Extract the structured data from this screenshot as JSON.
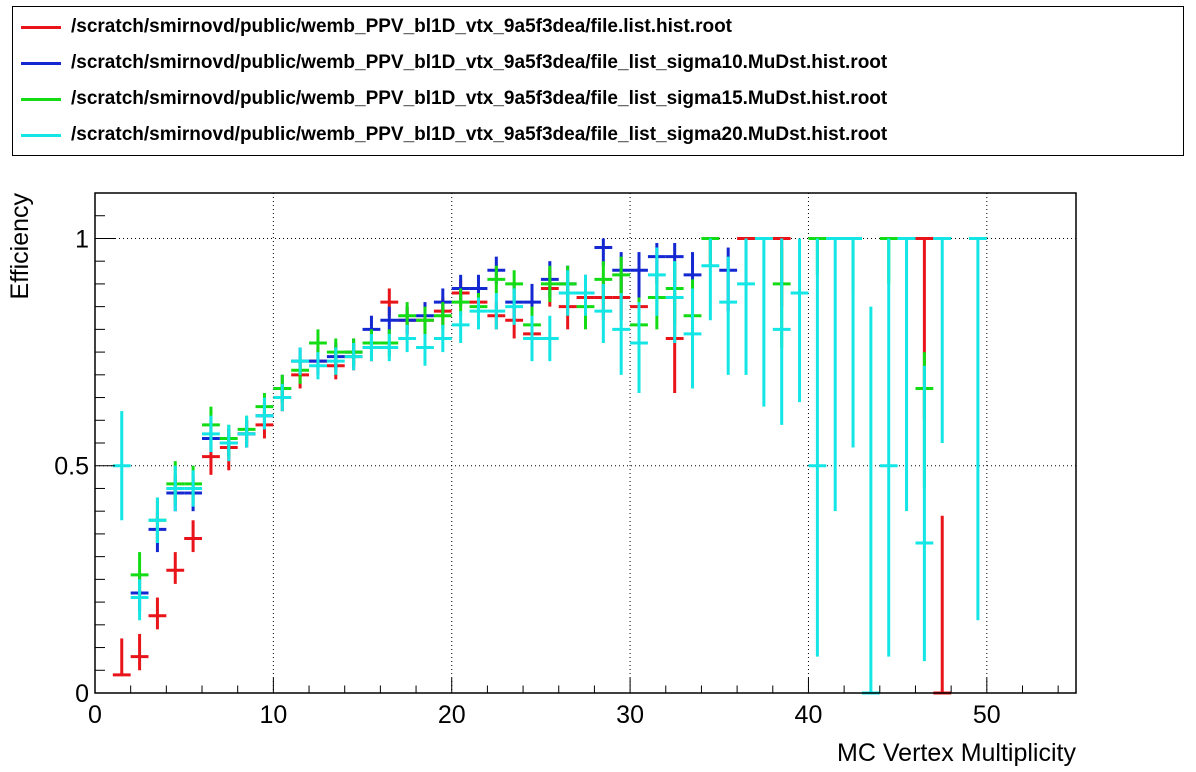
{
  "chart_data": {
    "type": "scatter",
    "xlabel": "MC Vertex Multiplicity",
    "ylabel": "Efficiency",
    "xlim": [
      0,
      55
    ],
    "ylim": [
      0,
      1.1
    ],
    "x_ticks": [
      "0",
      "10",
      "20",
      "30",
      "40",
      "50"
    ],
    "y_ticks": [
      "0",
      "0.5",
      "1"
    ],
    "grid": true,
    "legend_position": "top",
    "series": [
      {
        "name": "/scratch/smirnovd/public/wemb_PPV_bl1D_vtx_9a5f3dea/file.list.hist.root",
        "color": "#e8141a",
        "points": [
          {
            "x": 1.5,
            "y": 0.04,
            "lo": 0.04,
            "hi": 0.12
          },
          {
            "x": 2.5,
            "y": 0.08,
            "lo": 0.05,
            "hi": 0.13
          },
          {
            "x": 3.5,
            "y": 0.17,
            "lo": 0.14,
            "hi": 0.21
          },
          {
            "x": 4.5,
            "y": 0.27,
            "lo": 0.24,
            "hi": 0.31
          },
          {
            "x": 5.5,
            "y": 0.34,
            "lo": 0.31,
            "hi": 0.38
          },
          {
            "x": 6.5,
            "y": 0.52,
            "lo": 0.48,
            "hi": 0.55
          },
          {
            "x": 7.5,
            "y": 0.54,
            "lo": 0.49,
            "hi": 0.57
          },
          {
            "x": 8.5,
            "y": 0.57,
            "lo": 0.54,
            "hi": 0.6
          },
          {
            "x": 9.5,
            "y": 0.59,
            "lo": 0.56,
            "hi": 0.62
          },
          {
            "x": 10.5,
            "y": 0.65,
            "lo": 0.62,
            "hi": 0.68
          },
          {
            "x": 11.5,
            "y": 0.7,
            "lo": 0.67,
            "hi": 0.73
          },
          {
            "x": 12.5,
            "y": 0.73,
            "lo": 0.7,
            "hi": 0.76
          },
          {
            "x": 13.5,
            "y": 0.72,
            "lo": 0.69,
            "hi": 0.75
          },
          {
            "x": 14.5,
            "y": 0.74,
            "lo": 0.71,
            "hi": 0.77
          },
          {
            "x": 15.5,
            "y": 0.76,
            "lo": 0.73,
            "hi": 0.79
          },
          {
            "x": 16.5,
            "y": 0.86,
            "lo": 0.83,
            "hi": 0.89
          },
          {
            "x": 17.5,
            "y": 0.82,
            "lo": 0.79,
            "hi": 0.85
          },
          {
            "x": 18.5,
            "y": 0.82,
            "lo": 0.79,
            "hi": 0.85
          },
          {
            "x": 19.5,
            "y": 0.84,
            "lo": 0.81,
            "hi": 0.87
          },
          {
            "x": 20.5,
            "y": 0.88,
            "lo": 0.85,
            "hi": 0.91
          },
          {
            "x": 21.5,
            "y": 0.86,
            "lo": 0.83,
            "hi": 0.89
          },
          {
            "x": 22.5,
            "y": 0.83,
            "lo": 0.8,
            "hi": 0.86
          },
          {
            "x": 23.5,
            "y": 0.82,
            "lo": 0.78,
            "hi": 0.85
          },
          {
            "x": 24.5,
            "y": 0.79,
            "lo": 0.75,
            "hi": 0.83
          },
          {
            "x": 25.5,
            "y": 0.89,
            "lo": 0.85,
            "hi": 0.93
          },
          {
            "x": 26.5,
            "y": 0.85,
            "lo": 0.8,
            "hi": 0.89
          },
          {
            "x": 27.5,
            "y": 0.87,
            "lo": 0.82,
            "hi": 0.91
          },
          {
            "x": 28.5,
            "y": 0.87,
            "lo": 0.82,
            "hi": 0.91
          },
          {
            "x": 29.5,
            "y": 0.87,
            "lo": 0.82,
            "hi": 0.92
          },
          {
            "x": 30.5,
            "y": 0.85,
            "lo": 0.79,
            "hi": 0.9
          },
          {
            "x": 32.5,
            "y": 0.78,
            "lo": 0.66,
            "hi": 0.88
          },
          {
            "x": 34.5,
            "y": 1.0,
            "lo": 0.95,
            "hi": 1.0
          },
          {
            "x": 36.5,
            "y": 1.0,
            "lo": 0.9,
            "hi": 1.0
          },
          {
            "x": 38.5,
            "y": 1.0,
            "lo": 0.85,
            "hi": 1.0
          },
          {
            "x": 46.5,
            "y": 1.0,
            "lo": 0.6,
            "hi": 1.0
          },
          {
            "x": 47.5,
            "y": 0.0,
            "lo": 0.0,
            "hi": 0.39
          }
        ]
      },
      {
        "name": "/scratch/smirnovd/public/wemb_PPV_bl1D_vtx_9a5f3dea/file_list_sigma10.MuDst.hist.root",
        "color": "#1428d2",
        "points": [
          {
            "x": 2.5,
            "y": 0.22,
            "lo": 0.18,
            "hi": 0.26
          },
          {
            "x": 3.5,
            "y": 0.36,
            "lo": 0.31,
            "hi": 0.4
          },
          {
            "x": 4.5,
            "y": 0.44,
            "lo": 0.4,
            "hi": 0.48
          },
          {
            "x": 5.5,
            "y": 0.44,
            "lo": 0.4,
            "hi": 0.48
          },
          {
            "x": 6.5,
            "y": 0.56,
            "lo": 0.53,
            "hi": 0.6
          },
          {
            "x": 7.5,
            "y": 0.55,
            "lo": 0.52,
            "hi": 0.58
          },
          {
            "x": 8.5,
            "y": 0.57,
            "lo": 0.54,
            "hi": 0.6
          },
          {
            "x": 9.5,
            "y": 0.61,
            "lo": 0.58,
            "hi": 0.64
          },
          {
            "x": 10.5,
            "y": 0.67,
            "lo": 0.64,
            "hi": 0.7
          },
          {
            "x": 11.5,
            "y": 0.73,
            "lo": 0.7,
            "hi": 0.76
          },
          {
            "x": 12.5,
            "y": 0.73,
            "lo": 0.7,
            "hi": 0.76
          },
          {
            "x": 13.5,
            "y": 0.74,
            "lo": 0.71,
            "hi": 0.77
          },
          {
            "x": 14.5,
            "y": 0.75,
            "lo": 0.72,
            "hi": 0.78
          },
          {
            "x": 15.5,
            "y": 0.8,
            "lo": 0.77,
            "hi": 0.83
          },
          {
            "x": 16.5,
            "y": 0.82,
            "lo": 0.79,
            "hi": 0.85
          },
          {
            "x": 17.5,
            "y": 0.82,
            "lo": 0.79,
            "hi": 0.85
          },
          {
            "x": 18.5,
            "y": 0.83,
            "lo": 0.8,
            "hi": 0.86
          },
          {
            "x": 19.5,
            "y": 0.86,
            "lo": 0.83,
            "hi": 0.89
          },
          {
            "x": 20.5,
            "y": 0.89,
            "lo": 0.86,
            "hi": 0.92
          },
          {
            "x": 21.5,
            "y": 0.89,
            "lo": 0.86,
            "hi": 0.92
          },
          {
            "x": 22.5,
            "y": 0.93,
            "lo": 0.9,
            "hi": 0.96
          },
          {
            "x": 23.5,
            "y": 0.86,
            "lo": 0.82,
            "hi": 0.9
          },
          {
            "x": 24.5,
            "y": 0.86,
            "lo": 0.82,
            "hi": 0.9
          },
          {
            "x": 25.5,
            "y": 0.91,
            "lo": 0.87,
            "hi": 0.95
          },
          {
            "x": 26.5,
            "y": 0.9,
            "lo": 0.86,
            "hi": 0.94
          },
          {
            "x": 27.5,
            "y": 0.88,
            "lo": 0.83,
            "hi": 0.92
          },
          {
            "x": 28.5,
            "y": 0.98,
            "lo": 0.94,
            "hi": 1.0
          },
          {
            "x": 29.5,
            "y": 0.93,
            "lo": 0.88,
            "hi": 0.97
          },
          {
            "x": 30.5,
            "y": 0.93,
            "lo": 0.87,
            "hi": 0.97
          },
          {
            "x": 31.5,
            "y": 0.96,
            "lo": 0.9,
            "hi": 0.99
          },
          {
            "x": 32.5,
            "y": 0.96,
            "lo": 0.89,
            "hi": 0.99
          },
          {
            "x": 33.5,
            "y": 0.92,
            "lo": 0.84,
            "hi": 0.97
          },
          {
            "x": 35.5,
            "y": 0.93,
            "lo": 0.84,
            "hi": 0.98
          }
        ]
      },
      {
        "name": "/scratch/smirnovd/public/wemb_PPV_bl1D_vtx_9a5f3dea/file_list_sigma15.MuDst.hist.root",
        "color": "#14dc14",
        "points": [
          {
            "x": 2.5,
            "y": 0.26,
            "lo": 0.21,
            "hi": 0.31
          },
          {
            "x": 3.5,
            "y": 0.38,
            "lo": 0.33,
            "hi": 0.43
          },
          {
            "x": 4.5,
            "y": 0.46,
            "lo": 0.42,
            "hi": 0.51
          },
          {
            "x": 5.5,
            "y": 0.46,
            "lo": 0.42,
            "hi": 0.5
          },
          {
            "x": 6.5,
            "y": 0.59,
            "lo": 0.55,
            "hi": 0.63
          },
          {
            "x": 7.5,
            "y": 0.56,
            "lo": 0.52,
            "hi": 0.59
          },
          {
            "x": 8.5,
            "y": 0.58,
            "lo": 0.55,
            "hi": 0.61
          },
          {
            "x": 9.5,
            "y": 0.63,
            "lo": 0.6,
            "hi": 0.66
          },
          {
            "x": 10.5,
            "y": 0.67,
            "lo": 0.64,
            "hi": 0.7
          },
          {
            "x": 11.5,
            "y": 0.71,
            "lo": 0.68,
            "hi": 0.74
          },
          {
            "x": 12.5,
            "y": 0.77,
            "lo": 0.74,
            "hi": 0.8
          },
          {
            "x": 13.5,
            "y": 0.75,
            "lo": 0.72,
            "hi": 0.78
          },
          {
            "x": 14.5,
            "y": 0.75,
            "lo": 0.72,
            "hi": 0.78
          },
          {
            "x": 15.5,
            "y": 0.77,
            "lo": 0.74,
            "hi": 0.8
          },
          {
            "x": 16.5,
            "y": 0.77,
            "lo": 0.74,
            "hi": 0.8
          },
          {
            "x": 17.5,
            "y": 0.83,
            "lo": 0.8,
            "hi": 0.86
          },
          {
            "x": 18.5,
            "y": 0.82,
            "lo": 0.79,
            "hi": 0.85
          },
          {
            "x": 19.5,
            "y": 0.83,
            "lo": 0.8,
            "hi": 0.86
          },
          {
            "x": 20.5,
            "y": 0.86,
            "lo": 0.83,
            "hi": 0.89
          },
          {
            "x": 21.5,
            "y": 0.85,
            "lo": 0.82,
            "hi": 0.88
          },
          {
            "x": 22.5,
            "y": 0.91,
            "lo": 0.88,
            "hi": 0.94
          },
          {
            "x": 23.5,
            "y": 0.9,
            "lo": 0.86,
            "hi": 0.93
          },
          {
            "x": 24.5,
            "y": 0.81,
            "lo": 0.77,
            "hi": 0.85
          },
          {
            "x": 25.5,
            "y": 0.9,
            "lo": 0.86,
            "hi": 0.94
          },
          {
            "x": 26.5,
            "y": 0.9,
            "lo": 0.85,
            "hi": 0.94
          },
          {
            "x": 27.5,
            "y": 0.85,
            "lo": 0.8,
            "hi": 0.89
          },
          {
            "x": 28.5,
            "y": 0.91,
            "lo": 0.86,
            "hi": 0.95
          },
          {
            "x": 29.5,
            "y": 0.92,
            "lo": 0.87,
            "hi": 0.96
          },
          {
            "x": 30.5,
            "y": 0.81,
            "lo": 0.74,
            "hi": 0.87
          },
          {
            "x": 31.5,
            "y": 0.87,
            "lo": 0.8,
            "hi": 0.93
          },
          {
            "x": 32.5,
            "y": 0.89,
            "lo": 0.81,
            "hi": 0.95
          },
          {
            "x": 33.5,
            "y": 0.83,
            "lo": 0.74,
            "hi": 0.91
          },
          {
            "x": 34.5,
            "y": 1.0,
            "lo": 0.94,
            "hi": 1.0
          },
          {
            "x": 38.5,
            "y": 0.9,
            "lo": 0.76,
            "hi": 0.98
          },
          {
            "x": 40.5,
            "y": 1.0,
            "lo": 0.92,
            "hi": 1.0
          },
          {
            "x": 42.5,
            "y": 1.0,
            "lo": 0.88,
            "hi": 1.0
          },
          {
            "x": 44.5,
            "y": 1.0,
            "lo": 0.9,
            "hi": 1.0
          },
          {
            "x": 46.5,
            "y": 0.67,
            "lo": 0.45,
            "hi": 0.75
          }
        ]
      },
      {
        "name": "/scratch/smirnovd/public/wemb_PPV_bl1D_vtx_9a5f3dea/file_list_sigma20.MuDst.hist.root",
        "color": "#14e6e6",
        "points": [
          {
            "x": 1.5,
            "y": 0.5,
            "lo": 0.38,
            "hi": 0.62
          },
          {
            "x": 2.5,
            "y": 0.21,
            "lo": 0.16,
            "hi": 0.25
          },
          {
            "x": 3.5,
            "y": 0.38,
            "lo": 0.33,
            "hi": 0.43
          },
          {
            "x": 4.5,
            "y": 0.45,
            "lo": 0.4,
            "hi": 0.5
          },
          {
            "x": 5.5,
            "y": 0.45,
            "lo": 0.41,
            "hi": 0.49
          },
          {
            "x": 6.5,
            "y": 0.57,
            "lo": 0.53,
            "hi": 0.61
          },
          {
            "x": 7.5,
            "y": 0.55,
            "lo": 0.51,
            "hi": 0.59
          },
          {
            "x": 8.5,
            "y": 0.57,
            "lo": 0.54,
            "hi": 0.61
          },
          {
            "x": 9.5,
            "y": 0.61,
            "lo": 0.58,
            "hi": 0.65
          },
          {
            "x": 10.5,
            "y": 0.65,
            "lo": 0.62,
            "hi": 0.68
          },
          {
            "x": 11.5,
            "y": 0.73,
            "lo": 0.7,
            "hi": 0.76
          },
          {
            "x": 12.5,
            "y": 0.72,
            "lo": 0.69,
            "hi": 0.75
          },
          {
            "x": 13.5,
            "y": 0.73,
            "lo": 0.7,
            "hi": 0.76
          },
          {
            "x": 14.5,
            "y": 0.74,
            "lo": 0.71,
            "hi": 0.77
          },
          {
            "x": 15.5,
            "y": 0.76,
            "lo": 0.73,
            "hi": 0.79
          },
          {
            "x": 16.5,
            "y": 0.76,
            "lo": 0.73,
            "hi": 0.79
          },
          {
            "x": 17.5,
            "y": 0.78,
            "lo": 0.75,
            "hi": 0.81
          },
          {
            "x": 18.5,
            "y": 0.76,
            "lo": 0.72,
            "hi": 0.79
          },
          {
            "x": 19.5,
            "y": 0.78,
            "lo": 0.75,
            "hi": 0.81
          },
          {
            "x": 20.5,
            "y": 0.81,
            "lo": 0.77,
            "hi": 0.84
          },
          {
            "x": 21.5,
            "y": 0.84,
            "lo": 0.8,
            "hi": 0.87
          },
          {
            "x": 22.5,
            "y": 0.84,
            "lo": 0.8,
            "hi": 0.88
          },
          {
            "x": 23.5,
            "y": 0.85,
            "lo": 0.81,
            "hi": 0.89
          },
          {
            "x": 24.5,
            "y": 0.78,
            "lo": 0.73,
            "hi": 0.83
          },
          {
            "x": 25.5,
            "y": 0.78,
            "lo": 0.73,
            "hi": 0.83
          },
          {
            "x": 26.5,
            "y": 0.88,
            "lo": 0.83,
            "hi": 0.93
          },
          {
            "x": 27.5,
            "y": 0.88,
            "lo": 0.83,
            "hi": 0.92
          },
          {
            "x": 28.5,
            "y": 0.84,
            "lo": 0.77,
            "hi": 0.9
          },
          {
            "x": 29.5,
            "y": 0.8,
            "lo": 0.7,
            "hi": 0.88
          },
          {
            "x": 30.5,
            "y": 0.77,
            "lo": 0.66,
            "hi": 0.86
          },
          {
            "x": 31.5,
            "y": 0.92,
            "lo": 0.83,
            "hi": 0.98
          },
          {
            "x": 32.5,
            "y": 0.87,
            "lo": 0.77,
            "hi": 0.95
          },
          {
            "x": 33.5,
            "y": 0.79,
            "lo": 0.67,
            "hi": 0.89
          },
          {
            "x": 34.5,
            "y": 0.94,
            "lo": 0.82,
            "hi": 1.0
          },
          {
            "x": 35.5,
            "y": 0.86,
            "lo": 0.7,
            "hi": 0.96
          },
          {
            "x": 36.5,
            "y": 0.9,
            "lo": 0.7,
            "hi": 1.0
          },
          {
            "x": 37.5,
            "y": 1.0,
            "lo": 0.63,
            "hi": 1.0
          },
          {
            "x": 38.5,
            "y": 0.8,
            "lo": 0.59,
            "hi": 1.0
          },
          {
            "x": 39.5,
            "y": 0.88,
            "lo": 0.64,
            "hi": 1.0
          },
          {
            "x": 40.5,
            "y": 0.5,
            "lo": 0.08,
            "hi": 1.0
          },
          {
            "x": 41.5,
            "y": 1.0,
            "lo": 0.4,
            "hi": 1.0
          },
          {
            "x": 42.5,
            "y": 1.0,
            "lo": 0.54,
            "hi": 1.0
          },
          {
            "x": 43.5,
            "y": 0.0,
            "lo": 0.0,
            "hi": 0.85
          },
          {
            "x": 44.5,
            "y": 0.5,
            "lo": 0.08,
            "hi": 1.0
          },
          {
            "x": 45.5,
            "y": 1.0,
            "lo": 0.4,
            "hi": 1.0
          },
          {
            "x": 46.5,
            "y": 0.33,
            "lo": 0.07,
            "hi": 0.72
          },
          {
            "x": 47.5,
            "y": 1.0,
            "lo": 0.55,
            "hi": 1.0
          },
          {
            "x": 49.5,
            "y": 1.0,
            "lo": 0.16,
            "hi": 1.0
          }
        ]
      }
    ]
  }
}
